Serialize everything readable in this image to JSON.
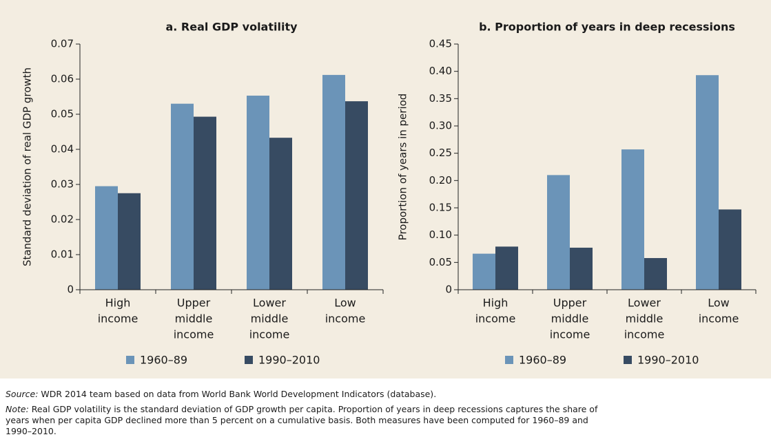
{
  "chart_data": [
    {
      "type": "bar",
      "title": "a. Real GDP volatility",
      "ylabel": "Standard deviation of real GDP growth",
      "categories": [
        [
          "High",
          "income"
        ],
        [
          "Upper",
          "middle",
          "income"
        ],
        [
          "Lower",
          "middle",
          "income"
        ],
        [
          "Low",
          "income"
        ]
      ],
      "series": [
        {
          "name": "1960–89",
          "color": "#6b94b8",
          "values": [
            0.0295,
            0.053,
            0.0553,
            0.0612
          ]
        },
        {
          "name": "1990–2010",
          "color": "#374b62",
          "values": [
            0.0275,
            0.0493,
            0.0433,
            0.0537
          ]
        }
      ],
      "ylim": [
        0,
        0.07
      ],
      "yticks": [
        0,
        0.01,
        0.02,
        0.03,
        0.04,
        0.05,
        0.06,
        0.07
      ]
    },
    {
      "type": "bar",
      "title": "b. Proportion of years in deep recessions",
      "ylabel": "Proportion of years in period",
      "categories": [
        [
          "High",
          "income"
        ],
        [
          "Upper",
          "middle",
          "income"
        ],
        [
          "Lower",
          "middle",
          "income"
        ],
        [
          "Low",
          "income"
        ]
      ],
      "series": [
        {
          "name": "1960–89",
          "color": "#6b94b8",
          "values": [
            0.066,
            0.21,
            0.257,
            0.393
          ]
        },
        {
          "name": "1990–2010",
          "color": "#374b62",
          "values": [
            0.079,
            0.077,
            0.058,
            0.147
          ]
        }
      ],
      "ylim": [
        0,
        0.45
      ],
      "yticks": [
        0,
        0.05,
        {
          "value": 0.1,
          "label": "0.10"
        },
        0.15,
        {
          "value": 0.2,
          "label": "0.20"
        },
        0.25,
        {
          "value": 0.3,
          "label": "0.30"
        },
        0.35,
        {
          "value": 0.4,
          "label": "0.40"
        },
        0.45
      ]
    }
  ],
  "footer": {
    "source_label": "Source:",
    "source": "WDR 2014 team based on data from World Bank World Development Indicators (database).",
    "note_label": "Note:",
    "note_lines": [
      "Real GDP volatility is the standard deviation of GDP growth per capita. Proportion of years in deep recessions captures the share of",
      "years when per capita GDP declined more than 5 percent on a cumulative basis. Both measures have been computed for 1960–89 and",
      "1990–2010."
    ]
  }
}
